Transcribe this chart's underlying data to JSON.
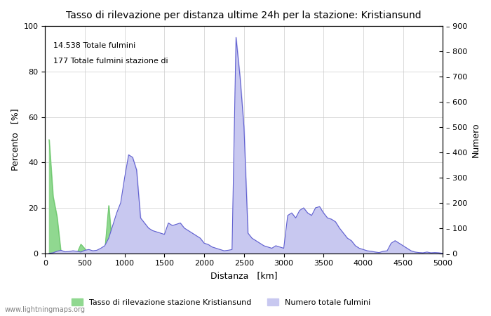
{
  "title": "Tasso di rilevazione per distanza ultime 24h per la stazione: Kristiansund",
  "xlabel": "Distanza   [km]",
  "ylabel_left": "Percento   [%]",
  "ylabel_right": "Numero",
  "annotation_line1": "14.538 Totale fulmini",
  "annotation_line2": "177 Totale fulmini stazione di",
  "legend_green": "Tasso di rilevazione stazione Kristiansund",
  "legend_blue": "Numero totale fulmini",
  "footer": "www.lightningmaps.org",
  "xlim": [
    0,
    5000
  ],
  "ylim_left": [
    0,
    100
  ],
  "ylim_right": [
    0,
    900
  ],
  "xticks": [
    0,
    500,
    1000,
    1500,
    2000,
    2500,
    3000,
    3500,
    4000,
    4500,
    5000
  ],
  "yticks_left": [
    0,
    20,
    40,
    60,
    80,
    100
  ],
  "yticks_right": [
    0,
    100,
    200,
    300,
    400,
    500,
    600,
    700,
    800,
    900
  ],
  "bg_color": "#ffffff",
  "grid_color": "#cccccc",
  "green_fill_color": "#90d890",
  "green_line_color": "#70c870",
  "blue_fill_color": "#c8c8f0",
  "blue_line_color": "#6060d0",
  "green_x": [
    50,
    100,
    150,
    200,
    250,
    300,
    350,
    400,
    450,
    500,
    550,
    600,
    650,
    700,
    750,
    800,
    850,
    900,
    950,
    1000,
    1050,
    1100,
    1150,
    1200,
    1250,
    1300,
    1350,
    1400,
    1450,
    1500,
    1550,
    1600,
    1650,
    1700,
    1750,
    1800,
    1850,
    1900,
    1950,
    2000,
    2050,
    2100,
    2150,
    2200,
    2250,
    2300,
    2350,
    2400,
    2450,
    2500,
    2550,
    2600,
    2650,
    2700,
    2750,
    2800,
    2850,
    2900,
    2950,
    3000,
    3050,
    3100,
    3150,
    3200,
    3250,
    3300,
    3350,
    3400,
    3450,
    3500,
    3550,
    3600,
    3650,
    3700,
    3750,
    3800,
    3850,
    3900,
    3950,
    4000,
    4050,
    4100,
    4150,
    4200,
    4250,
    4300,
    4350,
    4400,
    4450,
    4500,
    4550,
    4600,
    4650,
    4700,
    4750,
    4800,
    4850,
    4900,
    4950,
    5000
  ],
  "green_y": [
    50,
    25,
    16,
    0,
    0,
    0,
    0,
    0,
    4,
    2,
    0,
    0,
    0,
    0,
    1,
    21,
    0,
    6,
    6,
    5,
    5,
    0,
    0,
    0,
    0,
    0,
    0,
    0,
    0,
    2,
    0,
    0,
    10,
    0,
    0,
    0,
    0,
    0,
    0,
    0,
    0,
    0,
    0,
    0,
    0,
    0,
    0,
    0,
    0,
    0,
    0,
    0,
    0,
    0,
    0,
    0,
    0,
    2,
    0,
    0,
    0,
    0,
    0,
    0,
    0,
    0,
    0,
    20,
    0,
    0,
    0,
    0,
    0,
    0,
    0,
    0,
    0,
    0,
    0,
    0,
    0,
    0,
    0,
    0,
    0,
    0,
    0,
    0,
    0,
    0,
    0,
    0,
    0,
    0,
    0,
    0,
    0,
    0,
    0,
    0
  ],
  "blue_x": [
    50,
    100,
    150,
    200,
    250,
    300,
    350,
    400,
    450,
    500,
    550,
    600,
    650,
    700,
    750,
    800,
    850,
    900,
    950,
    1000,
    1050,
    1100,
    1150,
    1200,
    1250,
    1300,
    1350,
    1400,
    1450,
    1500,
    1550,
    1600,
    1650,
    1700,
    1750,
    1800,
    1850,
    1900,
    1950,
    2000,
    2050,
    2100,
    2150,
    2200,
    2250,
    2300,
    2350,
    2400,
    2450,
    2500,
    2550,
    2600,
    2650,
    2700,
    2750,
    2800,
    2850,
    2900,
    2950,
    3000,
    3050,
    3100,
    3150,
    3200,
    3250,
    3300,
    3350,
    3400,
    3450,
    3500,
    3550,
    3600,
    3650,
    3700,
    3750,
    3800,
    3850,
    3900,
    3950,
    4000,
    4050,
    4100,
    4150,
    4200,
    4250,
    4300,
    4350,
    4400,
    4450,
    4500,
    4550,
    4600,
    4650,
    4700,
    4750,
    4800,
    4850,
    4900,
    4950,
    5000
  ],
  "blue_y_raw": [
    0,
    2,
    8,
    12,
    6,
    7,
    10,
    8,
    5,
    12,
    15,
    10,
    12,
    20,
    30,
    60,
    110,
    160,
    200,
    300,
    390,
    380,
    330,
    140,
    120,
    100,
    90,
    85,
    80,
    75,
    120,
    110,
    115,
    120,
    100,
    90,
    80,
    70,
    60,
    40,
    35,
    25,
    20,
    15,
    10,
    12,
    15,
    855,
    700,
    500,
    80,
    60,
    50,
    40,
    30,
    25,
    20,
    30,
    25,
    20,
    150,
    160,
    140,
    170,
    180,
    160,
    150,
    180,
    185,
    160,
    140,
    135,
    125,
    100,
    80,
    60,
    50,
    30,
    20,
    15,
    10,
    8,
    5,
    3,
    8,
    10,
    40,
    50,
    40,
    30,
    20,
    10,
    5,
    3,
    2,
    5,
    2,
    3,
    2,
    0
  ]
}
